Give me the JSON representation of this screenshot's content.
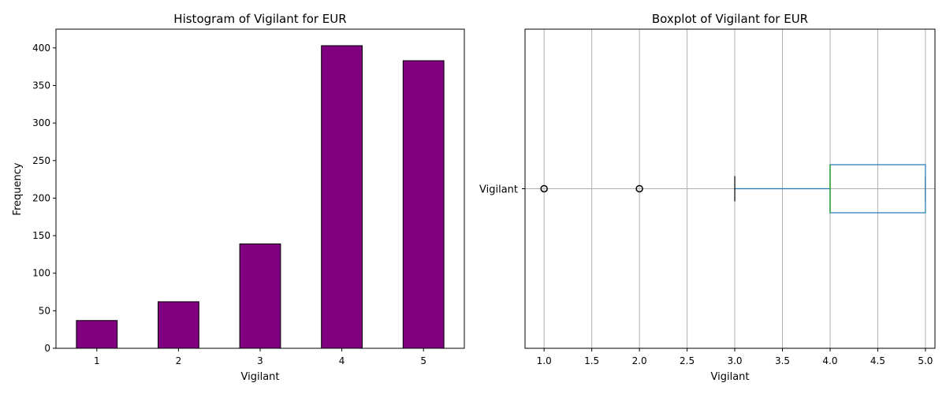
{
  "chart_data": [
    {
      "type": "bar",
      "title": "Histogram of Vigilant for EUR",
      "xlabel": "Vigilant",
      "ylabel": "Frequency",
      "categories": [
        "1",
        "2",
        "3",
        "4",
        "5"
      ],
      "values": [
        37,
        62,
        139,
        403,
        383
      ],
      "ylim": [
        0,
        425
      ],
      "yticks": [
        0,
        50,
        100,
        150,
        200,
        250,
        300,
        350,
        400
      ],
      "bar_color": "#800080",
      "edge_color": "#000000",
      "grid": false
    },
    {
      "type": "boxplot",
      "title": "Boxplot of Vigilant for EUR",
      "xlabel": "Vigilant",
      "category": "Vigilant",
      "xlim": [
        0.8,
        5.1
      ],
      "xticks": [
        "1.0",
        "1.5",
        "2.0",
        "2.5",
        "3.0",
        "3.5",
        "4.0",
        "4.5",
        "5.0"
      ],
      "whisker_low": 3,
      "q1": 4,
      "median": 4,
      "q3": 5,
      "whisker_high": 5,
      "outliers": [
        1,
        2
      ],
      "box_color": "#1f77b4",
      "median_color": "#2ca02c",
      "grid": true
    }
  ]
}
